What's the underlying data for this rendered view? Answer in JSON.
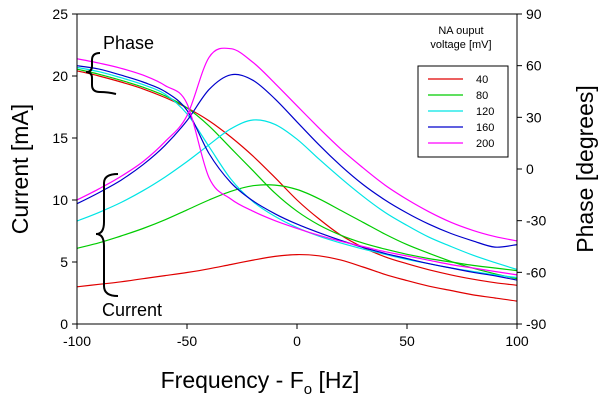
{
  "chart_data": {
    "type": "line",
    "xlabel": "Frequency - F",
    "xlabel_sub": "o",
    "xlabel_suffix": " [Hz]",
    "ylabel_left": "Current [mA]",
    "ylabel_right": "Phase [degrees]",
    "xlim": [
      -100,
      100
    ],
    "ylim_left": [
      0,
      25
    ],
    "ylim_right": [
      -90,
      90
    ],
    "xticks": [
      -100,
      -50,
      0,
      50,
      100
    ],
    "yticks_left": [
      0,
      5,
      10,
      15,
      20,
      25
    ],
    "yticks_right": [
      -90,
      -60,
      -30,
      0,
      30,
      60,
      90
    ],
    "legend": {
      "title_line1": "NA ouput",
      "title_line2": "voltage [mV]",
      "placement": "top-right"
    },
    "annotations": {
      "phase_label": "Phase",
      "current_label": "Current"
    },
    "grid": false,
    "x": [
      -100,
      -90,
      -80,
      -70,
      -60,
      -50,
      -40,
      -30,
      -20,
      -10,
      0,
      10,
      20,
      30,
      40,
      50,
      60,
      70,
      80,
      90,
      100
    ],
    "series": [
      {
        "name": "40",
        "color": "#e00000",
        "current": [
          3.0,
          3.2,
          3.4,
          3.65,
          3.9,
          4.15,
          4.45,
          4.8,
          5.15,
          5.45,
          5.6,
          5.5,
          5.15,
          4.6,
          4.0,
          3.5,
          3.05,
          2.7,
          2.35,
          2.1,
          1.85
        ],
        "phase": [
          57,
          54,
          50.5,
          46.5,
          41.5,
          35.5,
          28,
          18.5,
          7.5,
          -5,
          -18,
          -29,
          -38.5,
          -45.5,
          -51,
          -55,
          -58.5,
          -61.5,
          -64,
          -66,
          -67.5
        ]
      },
      {
        "name": "80",
        "color": "#00cc00",
        "current": [
          6.1,
          6.55,
          7.1,
          7.7,
          8.4,
          9.2,
          10.0,
          10.7,
          11.15,
          11.2,
          10.85,
          10.1,
          9.15,
          8.2,
          7.25,
          6.4,
          5.7,
          5.05,
          4.5,
          4.05,
          3.65
        ],
        "phase": [
          58,
          55,
          51.5,
          47.5,
          42.5,
          35.5,
          25,
          12,
          -1,
          -14,
          -24.5,
          -32.5,
          -38.5,
          -43,
          -46.5,
          -49.5,
          -52,
          -54,
          -56,
          -57.5,
          -59
        ]
      },
      {
        "name": "120",
        "color": "#00e5e5",
        "current": [
          8.3,
          9.0,
          9.8,
          10.75,
          11.85,
          13.1,
          14.45,
          15.75,
          16.45,
          16.1,
          14.9,
          13.3,
          11.75,
          10.3,
          9.0,
          7.95,
          7.0,
          6.25,
          5.55,
          4.95,
          4.4
        ],
        "phase": [
          59,
          56.5,
          53,
          49,
          43.5,
          32,
          13,
          -6,
          -19,
          -27.5,
          -34,
          -39,
          -43,
          -46.5,
          -49.5,
          -52.5,
          -55,
          -57.5,
          -59.5,
          -61.5,
          -63
        ]
      },
      {
        "name": "160",
        "color": "#0000cc",
        "current": [
          9.7,
          10.6,
          11.6,
          12.85,
          14.4,
          16.4,
          18.9,
          20.1,
          19.65,
          18.15,
          16.3,
          14.45,
          12.75,
          11.25,
          10.0,
          8.95,
          8.05,
          7.3,
          6.7,
          6.2,
          6.4
        ],
        "phase": [
          60,
          58,
          54.5,
          50.5,
          45,
          34,
          9,
          -8,
          -18.5,
          -26,
          -32,
          -37,
          -41.5,
          -45.5,
          -49,
          -52,
          -55,
          -57.5,
          -60,
          -62,
          -64.5
        ]
      },
      {
        "name": "200",
        "color": "#ff00ff",
        "current": [
          10.0,
          10.9,
          11.9,
          13.1,
          14.7,
          16.8,
          21.5,
          22.2,
          21.1,
          19.4,
          17.6,
          15.8,
          14.1,
          12.6,
          11.2,
          10.05,
          9.05,
          8.2,
          7.55,
          7.05,
          6.7
        ],
        "phase": [
          64,
          61.5,
          58.5,
          54.5,
          48.5,
          38,
          -5,
          -17.5,
          -24.5,
          -30,
          -34.5,
          -38.5,
          -42,
          -45,
          -48,
          -50.5,
          -53,
          -55.5,
          -57.5,
          -59.5,
          -61.5
        ]
      }
    ]
  }
}
